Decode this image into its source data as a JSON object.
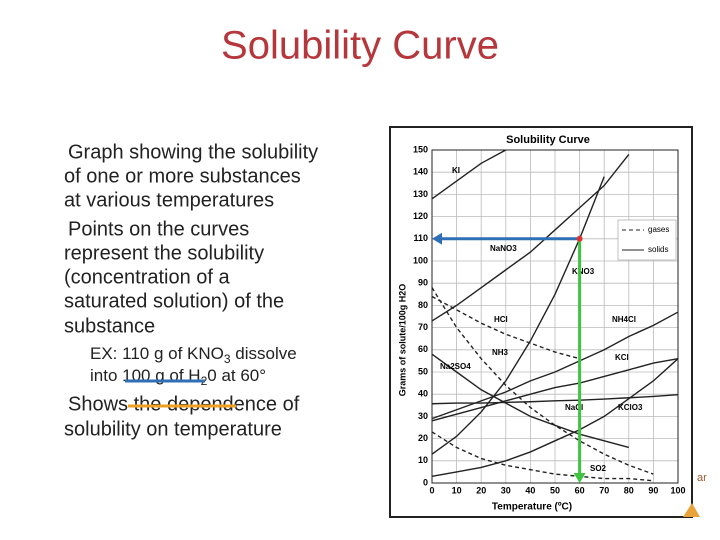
{
  "slide": {
    "title": "Solubility Curve",
    "bullets": [
      [
        "Graph showing the solubility",
        "of one or more substances",
        "at various temperatures"
      ],
      [
        "Points on the curves",
        "represent the solubility",
        "(concentration of a",
        "saturated solution) of the",
        "substance"
      ]
    ],
    "example": [
      [
        "EX: 110 g of KNO",
        "3",
        " dissolve"
      ],
      [
        "into 100 g of H",
        "2",
        "0 at 60°"
      ]
    ],
    "closing": [
      "Shows the dependence of",
      "solubility on temperature"
    ],
    "corner_text": "ar"
  },
  "chart_data": {
    "type": "line",
    "title": "Solubility Curve",
    "x_label": "Temperature (ºC)",
    "y_label": "Grams of solute/100g H2O",
    "x": [
      0,
      10,
      20,
      30,
      40,
      50,
      60,
      70,
      80,
      90,
      100
    ],
    "xlim": [
      0,
      100
    ],
    "ylim": [
      0,
      150
    ],
    "xticks": [
      0,
      10,
      20,
      30,
      40,
      50,
      60,
      70,
      80,
      90,
      100
    ],
    "yticks": [
      0,
      10,
      20,
      30,
      40,
      50,
      60,
      70,
      80,
      90,
      100,
      110,
      120,
      130,
      140,
      150
    ],
    "grid": true,
    "legend": {
      "gases": "gases",
      "solids": "solids"
    },
    "series": [
      {
        "name": "KI",
        "color": "#222",
        "dash": false,
        "values": [
          128,
          136,
          144,
          150,
          null,
          null,
          null,
          null,
          null,
          null,
          null
        ]
      },
      {
        "name": "NaNO3",
        "color": "#222",
        "dash": false,
        "values": [
          73,
          80,
          88,
          96,
          104,
          114,
          124,
          134,
          148,
          null,
          null
        ]
      },
      {
        "name": "KNO3",
        "color": "#222",
        "dash": false,
        "values": [
          13,
          21,
          32,
          46,
          64,
          85,
          110,
          138,
          null,
          null,
          null
        ]
      },
      {
        "name": "HCl",
        "color": "#222",
        "dash": true,
        "values": [
          84,
          78,
          72,
          67,
          63,
          59,
          56,
          null,
          null,
          null,
          null
        ]
      },
      {
        "name": "NH4Cl",
        "color": "#222",
        "dash": false,
        "values": [
          29,
          33,
          37,
          41,
          46,
          50,
          55,
          60,
          66,
          71,
          77
        ]
      },
      {
        "name": "NH3",
        "color": "#222",
        "dash": true,
        "values": [
          88,
          70,
          56,
          44,
          34,
          26,
          19,
          13,
          8,
          4,
          null
        ]
      },
      {
        "name": "Na2SO4",
        "color": "#222",
        "dash": false,
        "values": [
          58,
          50,
          42,
          36,
          30,
          26,
          22,
          19,
          16,
          null,
          null
        ]
      },
      {
        "name": "KCl",
        "color": "#222",
        "dash": false,
        "values": [
          28,
          31,
          34,
          37,
          40,
          43,
          45,
          48,
          51,
          54,
          56
        ]
      },
      {
        "name": "NaCl",
        "color": "#222",
        "dash": false,
        "values": [
          35.7,
          36,
          36,
          36.3,
          36.6,
          37,
          37.3,
          37.8,
          38.4,
          39,
          39.8
        ]
      },
      {
        "name": "KClO3",
        "color": "#222",
        "dash": false,
        "values": [
          3,
          5,
          7,
          10,
          14,
          19,
          24,
          30,
          38,
          46,
          56
        ]
      },
      {
        "name": "SO2",
        "color": "#222",
        "dash": true,
        "values": [
          23,
          16,
          11,
          8,
          6,
          4,
          3,
          2,
          2,
          1,
          null
        ]
      }
    ],
    "highlight": {
      "x": 60,
      "y": 110
    }
  }
}
